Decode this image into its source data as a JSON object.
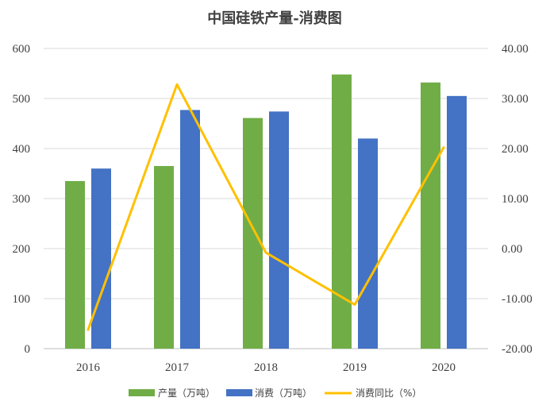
{
  "chart_data": {
    "type": "bar",
    "title": "中国硅铁产量-消费图",
    "categories": [
      "2016",
      "2017",
      "2018",
      "2019",
      "2020"
    ],
    "series": [
      {
        "name": "产量（万吨）",
        "kind": "bar",
        "axis": "left",
        "color": "#70ad47",
        "values": [
          335,
          365,
          461,
          548,
          532
        ]
      },
      {
        "name": "消费（万吨）",
        "kind": "bar",
        "axis": "left",
        "color": "#4472c4",
        "values": [
          360,
          477,
          474,
          420,
          505
        ]
      },
      {
        "name": "消费同比（%）",
        "kind": "line",
        "axis": "right",
        "color": "#ffc000",
        "values": [
          -16.2,
          32.8,
          -0.8,
          -11.2,
          20.2
        ]
      }
    ],
    "y_left": {
      "min": 0,
      "max": 600,
      "step": 100,
      "ticks": [
        "0",
        "100",
        "200",
        "300",
        "400",
        "500",
        "600"
      ]
    },
    "y_right": {
      "min": -20,
      "max": 40,
      "step": 10,
      "ticks": [
        "-20.00",
        "-10.00",
        "0.00",
        "10.00",
        "20.00",
        "30.00",
        "40.00"
      ]
    },
    "grid": true,
    "legend_position": "bottom"
  }
}
